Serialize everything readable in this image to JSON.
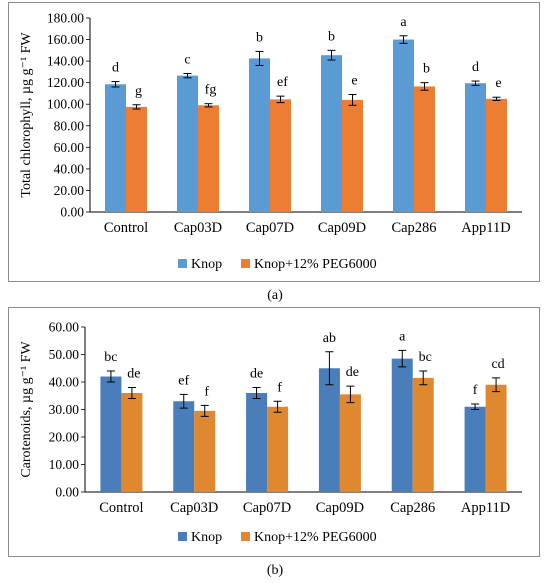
{
  "chart_data": [
    {
      "type": "bar",
      "panel_label": "(a)",
      "ylabel": "Total chlorophyll, µg g⁻¹ FW",
      "ylim": [
        0,
        180
      ],
      "yticks": [
        "0.00",
        "20.00",
        "40.00",
        "60.00",
        "80.00",
        "100.00",
        "120.00",
        "140.00",
        "160.00",
        "180.00"
      ],
      "categories": [
        "Control",
        "Cap03D",
        "Cap07D",
        "Cap09D",
        "Cap286",
        "App11D"
      ],
      "series": [
        {
          "name": "Knop",
          "color": "#5b9bd5",
          "values": [
            118.5,
            126.5,
            142.5,
            145.5,
            160.0,
            119.5
          ],
          "errors": [
            2.5,
            2.0,
            6.5,
            4.5,
            3.5,
            2.0
          ],
          "letters": [
            "d",
            "c",
            "b",
            "b",
            "a",
            "d"
          ]
        },
        {
          "name": "Knop+12% PEG6000",
          "color": "#ed7d31",
          "values": [
            97.5,
            99.0,
            104.5,
            104.0,
            116.5,
            105.0
          ],
          "errors": [
            2.0,
            1.5,
            3.0,
            5.0,
            3.5,
            1.5
          ],
          "letters": [
            "g",
            "fg",
            "ef",
            "e",
            "b",
            "e"
          ]
        }
      ],
      "legend_position": "bottom"
    },
    {
      "type": "bar",
      "panel_label": "(b)",
      "ylabel": "Carotenoids, µg g⁻¹ FW",
      "ylim": [
        0,
        60
      ],
      "yticks": [
        "0.00",
        "10.00",
        "20.00",
        "30.00",
        "40.00",
        "50.00",
        "60.00"
      ],
      "categories": [
        "Control",
        "Cap03D",
        "Cap07D",
        "Cap09D",
        "Cap286",
        "App11D"
      ],
      "series": [
        {
          "name": "Knop",
          "color": "#4a7ebb",
          "values": [
            42.0,
            33.0,
            36.0,
            45.0,
            48.5,
            31.0
          ],
          "errors": [
            2.0,
            2.5,
            2.0,
            6.0,
            3.0,
            1.0
          ],
          "letters": [
            "bc",
            "ef",
            "de",
            "ab",
            "a",
            "f"
          ]
        },
        {
          "name": "Knop+12% PEG6000",
          "color": "#e0882f",
          "values": [
            36.0,
            29.5,
            31.0,
            35.5,
            41.5,
            39.0
          ],
          "errors": [
            2.0,
            2.0,
            2.0,
            3.0,
            2.5,
            2.5
          ],
          "letters": [
            "de",
            "f",
            "f",
            "de",
            "bc",
            "cd"
          ]
        }
      ],
      "legend_position": "bottom"
    }
  ]
}
